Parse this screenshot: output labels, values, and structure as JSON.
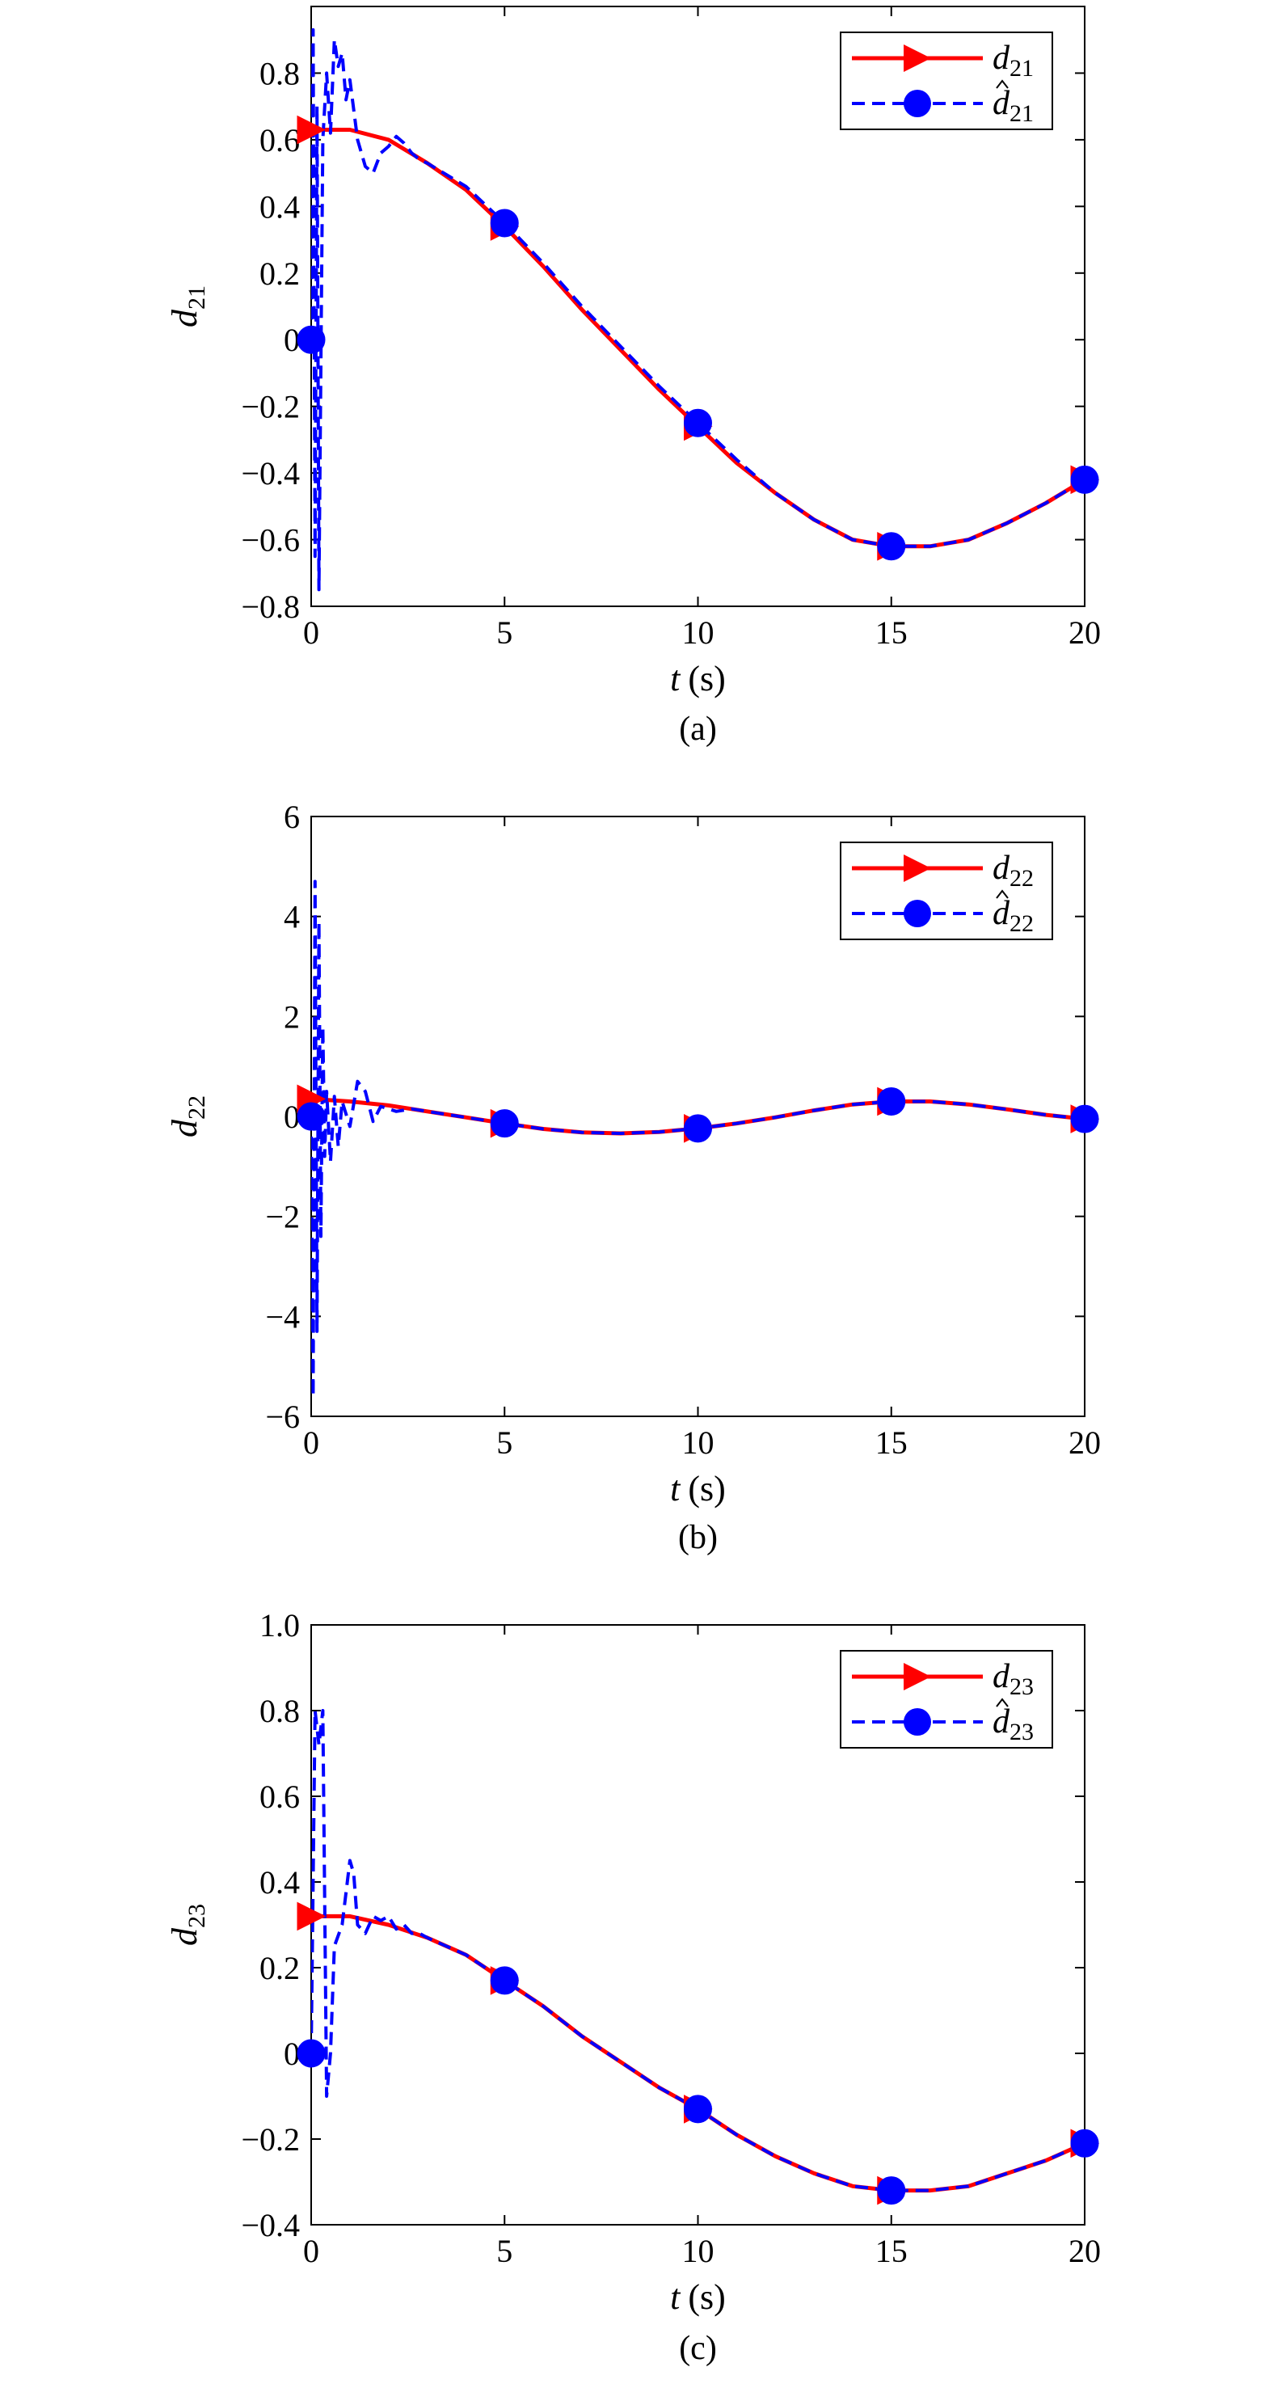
{
  "chart_data": [
    {
      "type": "line",
      "caption": "(a)",
      "xlabel": {
        "var": "t",
        "unit": "(s)"
      },
      "ylabel": {
        "base": "d",
        "sub": "21"
      },
      "xlim": [
        0,
        20
      ],
      "ylim": [
        -0.8,
        1.0
      ],
      "xticks": [
        0,
        5,
        10,
        15,
        20
      ],
      "xtick_labels": [
        "0",
        "5",
        "10",
        "15",
        "20"
      ],
      "yticks": [
        -0.8,
        -0.6,
        -0.4,
        -0.2,
        0,
        0.2,
        0.4,
        0.6,
        0.8
      ],
      "ytick_labels": [
        "−0.8",
        "−0.6",
        "−0.4",
        "−0.2",
        "0",
        "0.2",
        "0.4",
        "0.6",
        "0.8"
      ],
      "grid": false,
      "legend_position": "top-right",
      "colors": {
        "actual": "#ff0000",
        "estimate": "#0000ff"
      },
      "series": [
        {
          "name": {
            "base": "d",
            "sub": "21",
            "hat": false
          },
          "style": "solid",
          "marker": "triangle-right",
          "x": [
            0,
            1,
            2,
            3,
            4,
            5,
            6,
            7,
            8,
            9,
            10,
            11,
            12,
            13,
            14,
            15,
            16,
            17,
            18,
            19,
            20
          ],
          "y": [
            0.63,
            0.63,
            0.6,
            0.53,
            0.45,
            0.34,
            0.22,
            0.09,
            -0.03,
            -0.15,
            -0.26,
            -0.37,
            -0.46,
            -0.54,
            -0.6,
            -0.62,
            -0.62,
            -0.6,
            -0.55,
            -0.49,
            -0.42
          ]
        },
        {
          "name": {
            "base": "d",
            "sub": "21",
            "hat": true
          },
          "style": "dashed",
          "marker": "circle",
          "x": [
            0,
            0.05,
            0.1,
            0.15,
            0.2,
            0.3,
            0.4,
            0.5,
            0.6,
            0.7,
            0.8,
            0.9,
            1.0,
            1.2,
            1.4,
            1.6,
            1.8,
            2.0,
            2.2,
            2.4,
            2.6,
            2.8,
            3,
            4,
            5,
            6,
            7,
            8,
            9,
            10,
            11,
            12,
            13,
            14,
            15,
            16,
            17,
            18,
            19,
            20
          ],
          "y": [
            0,
            0.93,
            -0.65,
            0.7,
            -0.75,
            0.6,
            0.8,
            0.62,
            0.9,
            0.82,
            0.86,
            0.72,
            0.78,
            0.6,
            0.52,
            0.5,
            0.56,
            0.58,
            0.61,
            0.59,
            0.56,
            0.54,
            0.53,
            0.46,
            0.35,
            0.23,
            0.1,
            -0.02,
            -0.14,
            -0.25,
            -0.36,
            -0.46,
            -0.54,
            -0.6,
            -0.62,
            -0.62,
            -0.6,
            -0.55,
            -0.49,
            -0.42
          ]
        }
      ]
    },
    {
      "type": "line",
      "caption": "(b)",
      "xlabel": {
        "var": "t",
        "unit": "(s)"
      },
      "ylabel": {
        "base": "d",
        "sub": "22"
      },
      "xlim": [
        0,
        20
      ],
      "ylim": [
        -6,
        6
      ],
      "xticks": [
        0,
        5,
        10,
        15,
        20
      ],
      "xtick_labels": [
        "0",
        "5",
        "10",
        "15",
        "20"
      ],
      "yticks": [
        -6,
        -4,
        -2,
        0,
        2,
        4,
        6
      ],
      "ytick_labels": [
        "−6",
        "−4",
        "−2",
        "0",
        "2",
        "4",
        "6"
      ],
      "grid": false,
      "legend_position": "top-right",
      "colors": {
        "actual": "#ff0000",
        "estimate": "#0000ff"
      },
      "series": [
        {
          "name": {
            "base": "d",
            "sub": "22",
            "hat": false
          },
          "style": "solid",
          "marker": "triangle-right",
          "x": [
            0,
            1,
            2,
            3,
            4,
            5,
            6,
            7,
            8,
            9,
            10,
            11,
            12,
            13,
            14,
            15,
            16,
            17,
            18,
            19,
            20
          ],
          "y": [
            0.35,
            0.3,
            0.22,
            0.1,
            -0.02,
            -0.14,
            -0.25,
            -0.32,
            -0.34,
            -0.31,
            -0.24,
            -0.14,
            -0.02,
            0.12,
            0.24,
            0.3,
            0.3,
            0.24,
            0.14,
            0.03,
            -0.05
          ]
        },
        {
          "name": {
            "base": "d",
            "sub": "22",
            "hat": true
          },
          "style": "dashed",
          "marker": "circle",
          "x": [
            0,
            0.05,
            0.1,
            0.15,
            0.2,
            0.25,
            0.3,
            0.35,
            0.4,
            0.5,
            0.6,
            0.7,
            0.8,
            1.0,
            1.2,
            1.4,
            1.6,
            1.8,
            2.2,
            2.6,
            3,
            4,
            5,
            6,
            7,
            8,
            9,
            10,
            11,
            12,
            13,
            14,
            15,
            16,
            17,
            18,
            19,
            20
          ],
          "y": [
            0,
            -5.6,
            4.7,
            -4.3,
            3.9,
            -2.4,
            1.8,
            -0.8,
            0.5,
            -0.9,
            0.4,
            -0.6,
            0.3,
            -0.2,
            0.7,
            0.5,
            -0.1,
            0.2,
            0.1,
            0.15,
            0.1,
            -0.02,
            -0.14,
            -0.25,
            -0.32,
            -0.34,
            -0.31,
            -0.24,
            -0.14,
            -0.02,
            0.12,
            0.24,
            0.3,
            0.3,
            0.24,
            0.14,
            0.03,
            -0.05
          ]
        }
      ]
    },
    {
      "type": "line",
      "caption": "(c)",
      "xlabel": {
        "var": "t",
        "unit": "(s)"
      },
      "ylabel": {
        "base": "d",
        "sub": "23"
      },
      "xlim": [
        0,
        20
      ],
      "ylim": [
        -0.4,
        1.0
      ],
      "xticks": [
        0,
        5,
        10,
        15,
        20
      ],
      "xtick_labels": [
        "0",
        "5",
        "10",
        "15",
        "20"
      ],
      "yticks": [
        -0.4,
        -0.2,
        0,
        0.2,
        0.4,
        0.6,
        0.8,
        1.0
      ],
      "ytick_labels": [
        "−0.4",
        "−0.2",
        "0",
        "0.2",
        "0.4",
        "0.6",
        "0.8",
        "1.0"
      ],
      "grid": false,
      "legend_position": "top-right",
      "colors": {
        "actual": "#ff0000",
        "estimate": "#0000ff"
      },
      "series": [
        {
          "name": {
            "base": "d",
            "sub": "23",
            "hat": false
          },
          "style": "solid",
          "marker": "triangle-right",
          "x": [
            0,
            1,
            2,
            3,
            4,
            5,
            6,
            7,
            8,
            9,
            10,
            11,
            12,
            13,
            14,
            15,
            16,
            17,
            18,
            19,
            20
          ],
          "y": [
            0.32,
            0.32,
            0.3,
            0.27,
            0.23,
            0.17,
            0.11,
            0.04,
            -0.02,
            -0.08,
            -0.13,
            -0.19,
            -0.24,
            -0.28,
            -0.31,
            -0.32,
            -0.32,
            -0.31,
            -0.28,
            -0.25,
            -0.21
          ]
        },
        {
          "name": {
            "base": "d",
            "sub": "23",
            "hat": true
          },
          "style": "dashed",
          "marker": "circle",
          "x": [
            0,
            0.1,
            0.2,
            0.3,
            0.4,
            0.5,
            0.6,
            0.8,
            1.0,
            1.1,
            1.2,
            1.4,
            1.6,
            1.8,
            2.0,
            2.2,
            2.4,
            2.6,
            2.8,
            3,
            4,
            5,
            6,
            7,
            8,
            9,
            10,
            11,
            12,
            13,
            14,
            15,
            16,
            17,
            18,
            19,
            20
          ],
          "y": [
            0,
            0.8,
            0.72,
            0.8,
            -0.1,
            0.0,
            0.25,
            0.3,
            0.45,
            0.42,
            0.3,
            0.28,
            0.32,
            0.31,
            0.32,
            0.29,
            0.3,
            0.28,
            0.28,
            0.27,
            0.23,
            0.17,
            0.11,
            0.04,
            -0.02,
            -0.08,
            -0.13,
            -0.19,
            -0.24,
            -0.28,
            -0.31,
            -0.32,
            -0.32,
            -0.31,
            -0.28,
            -0.25,
            -0.21
          ]
        }
      ]
    }
  ]
}
